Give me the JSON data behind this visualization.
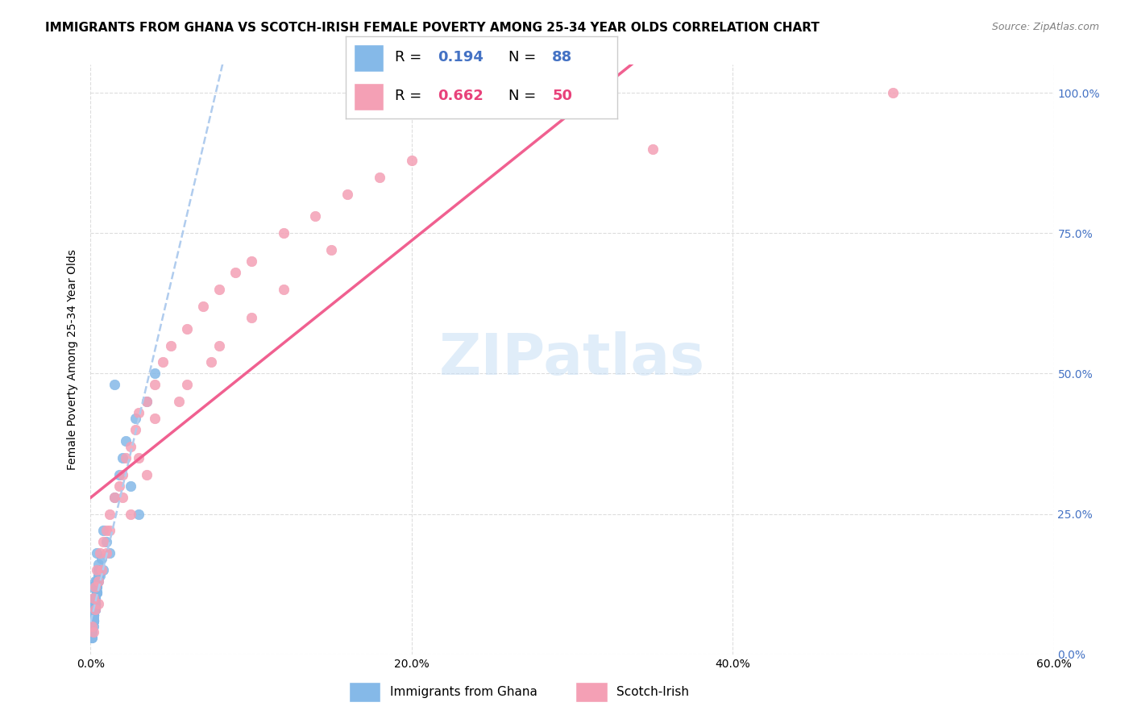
{
  "title": "IMMIGRANTS FROM GHANA VS SCOTCH-IRISH FEMALE POVERTY AMONG 25-34 YEAR OLDS CORRELATION CHART",
  "source": "Source: ZipAtlas.com",
  "ylabel": "Female Poverty Among 25-34 Year Olds",
  "xlim": [
    0.0,
    0.6
  ],
  "ylim": [
    0.0,
    1.05
  ],
  "xtick_labels": [
    "0.0%",
    "20.0%",
    "40.0%",
    "60.0%"
  ],
  "xtick_vals": [
    0.0,
    0.2,
    0.4,
    0.6
  ],
  "ytick_labels_right": [
    "0.0%",
    "25.0%",
    "50.0%",
    "75.0%",
    "100.0%"
  ],
  "ytick_vals": [
    0.0,
    0.25,
    0.5,
    0.75,
    1.0
  ],
  "watermark": "ZIPatlas",
  "ghana_color": "#85b9e8",
  "scotch_color": "#f4a0b5",
  "ghana_R": "0.194",
  "ghana_N": "88",
  "scotch_R": "0.662",
  "scotch_N": "50",
  "ghana_line_color": "#b0ccee",
  "scotch_line_color": "#f06090",
  "legend_labels": [
    "Immigrants from Ghana",
    "Scotch-Irish"
  ],
  "blue_text_color": "#4472c4",
  "pink_text_color": "#e8417a",
  "ghana_scatter_x": [
    0.002,
    0.003,
    0.001,
    0.005,
    0.004,
    0.002,
    0.001,
    0.003,
    0.002,
    0.001,
    0.004,
    0.003,
    0.005,
    0.002,
    0.001,
    0.003,
    0.002,
    0.004,
    0.001,
    0.003,
    0.006,
    0.002,
    0.003,
    0.001,
    0.004,
    0.002,
    0.003,
    0.005,
    0.001,
    0.002,
    0.003,
    0.004,
    0.002,
    0.001,
    0.003,
    0.002,
    0.005,
    0.003,
    0.002,
    0.001,
    0.004,
    0.002,
    0.003,
    0.001,
    0.002,
    0.003,
    0.004,
    0.002,
    0.001,
    0.003,
    0.007,
    0.002,
    0.004,
    0.003,
    0.002,
    0.001,
    0.005,
    0.003,
    0.002,
    0.004,
    0.001,
    0.003,
    0.002,
    0.004,
    0.003,
    0.002,
    0.001,
    0.003,
    0.004,
    0.002,
    0.005,
    0.003,
    0.002,
    0.001,
    0.03,
    0.025,
    0.02,
    0.015,
    0.01,
    0.008,
    0.012,
    0.018,
    0.022,
    0.028,
    0.035,
    0.04,
    0.008,
    0.015
  ],
  "ghana_scatter_y": [
    0.05,
    0.08,
    0.12,
    0.15,
    0.18,
    0.1,
    0.07,
    0.09,
    0.06,
    0.04,
    0.11,
    0.13,
    0.16,
    0.08,
    0.05,
    0.1,
    0.07,
    0.12,
    0.06,
    0.09,
    0.14,
    0.07,
    0.08,
    0.05,
    0.11,
    0.06,
    0.09,
    0.13,
    0.04,
    0.07,
    0.1,
    0.12,
    0.08,
    0.05,
    0.09,
    0.06,
    0.14,
    0.1,
    0.07,
    0.04,
    0.13,
    0.07,
    0.09,
    0.05,
    0.08,
    0.1,
    0.13,
    0.07,
    0.04,
    0.09,
    0.17,
    0.06,
    0.11,
    0.08,
    0.07,
    0.04,
    0.15,
    0.09,
    0.06,
    0.12,
    0.03,
    0.08,
    0.06,
    0.11,
    0.09,
    0.07,
    0.04,
    0.08,
    0.11,
    0.06,
    0.14,
    0.09,
    0.06,
    0.03,
    0.25,
    0.3,
    0.35,
    0.28,
    0.2,
    0.22,
    0.18,
    0.32,
    0.38,
    0.42,
    0.45,
    0.5,
    0.15,
    0.48
  ],
  "scotch_scatter_x": [
    0.001,
    0.002,
    0.003,
    0.004,
    0.005,
    0.006,
    0.008,
    0.01,
    0.012,
    0.015,
    0.018,
    0.02,
    0.022,
    0.025,
    0.028,
    0.03,
    0.035,
    0.04,
    0.045,
    0.05,
    0.06,
    0.07,
    0.08,
    0.09,
    0.1,
    0.12,
    0.14,
    0.16,
    0.18,
    0.2,
    0.003,
    0.007,
    0.012,
    0.02,
    0.03,
    0.04,
    0.06,
    0.08,
    0.1,
    0.15,
    0.002,
    0.005,
    0.01,
    0.025,
    0.035,
    0.055,
    0.075,
    0.12,
    0.35,
    0.5
  ],
  "scotch_scatter_y": [
    0.05,
    0.1,
    0.12,
    0.15,
    0.13,
    0.18,
    0.2,
    0.22,
    0.25,
    0.28,
    0.3,
    0.32,
    0.35,
    0.37,
    0.4,
    0.43,
    0.45,
    0.48,
    0.52,
    0.55,
    0.58,
    0.62,
    0.65,
    0.68,
    0.7,
    0.75,
    0.78,
    0.82,
    0.85,
    0.88,
    0.08,
    0.15,
    0.22,
    0.28,
    0.35,
    0.42,
    0.48,
    0.55,
    0.6,
    0.72,
    0.04,
    0.09,
    0.18,
    0.25,
    0.32,
    0.45,
    0.52,
    0.65,
    0.9,
    1.0
  ],
  "background_color": "#ffffff",
  "grid_color": "#dddddd",
  "title_fontsize": 11,
  "axis_label_fontsize": 10,
  "tick_fontsize": 10,
  "right_tick_color": "#4472c4"
}
